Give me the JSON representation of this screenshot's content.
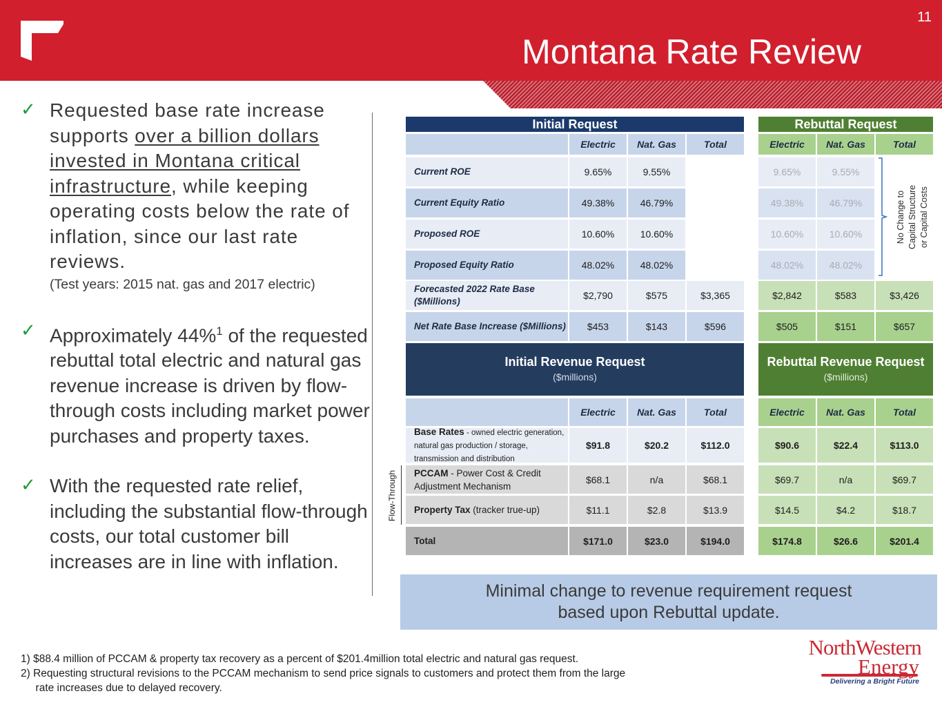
{
  "slide": {
    "page_number": "11",
    "title": "Montana Rate Review"
  },
  "bullets": [
    {
      "pre": "Requested base rate increase supports ",
      "underlined": "over a billion dollars invested in Montana critical infrastructure",
      "post": ", while keeping operating costs below the rate of inflation, since our last rate reviews.",
      "note": "(Test years: 2015 nat. gas and 2017 electric)"
    },
    {
      "pre": "Approximately 44%",
      "sup": "1",
      "post": " of the requested rebuttal total electric and natural gas revenue increase is driven by flow-through costs including market power purchases and property taxes."
    },
    {
      "text": "With the requested rate relief, including the substantial flow-through costs, our total customer bill increases are in line with inflation."
    }
  ],
  "table": {
    "initial_title": "Initial Request",
    "rebuttal_title": "Rebuttal Request",
    "col_headers": [
      "Electric",
      "Nat. Gas",
      "Total"
    ],
    "rows": [
      {
        "label": "Current ROE",
        "initial": [
          "9.65%",
          "9.55%",
          ""
        ],
        "rebuttal": [
          "9.65%",
          "9.55%",
          ""
        ]
      },
      {
        "label": "Current Equity Ratio",
        "initial": [
          "49.38%",
          "46.79%",
          ""
        ],
        "rebuttal": [
          "49.38%",
          "46.79%",
          ""
        ]
      },
      {
        "label": "Proposed ROE",
        "initial": [
          "10.60%",
          "10.60%",
          ""
        ],
        "rebuttal": [
          "10.60%",
          "10.60%",
          ""
        ]
      },
      {
        "label": "Proposed Equity Ratio",
        "initial": [
          "48.02%",
          "48.02%",
          ""
        ],
        "rebuttal": [
          "48.02%",
          "48.02%",
          ""
        ]
      },
      {
        "label": "Forecasted 2022 Rate Base ($Millions)",
        "initial": [
          "$2,790",
          "$575",
          "$3,365"
        ],
        "rebuttal": [
          "$2,842",
          "$583",
          "$3,426"
        ]
      },
      {
        "label": "Net Rate Base Increase ($Millions)",
        "initial": [
          "$453",
          "$143",
          "$596"
        ],
        "rebuttal": [
          "$505",
          "$151",
          "$657"
        ]
      }
    ],
    "no_change_note": [
      "No Change to",
      "Capital Structure",
      "or Capital Costs"
    ],
    "initial_revenue_title": "Initial Revenue Request",
    "rebuttal_revenue_title": "Rebuttal Revenue Request",
    "revenue_unit": "($millions)",
    "revenue_rows": [
      {
        "label_bold": "Base Rates",
        "label_rest": " - owned electric generation, natural gas production / storage, transmission and distribution",
        "initial": [
          "$91.8",
          "$20.2",
          "$112.0"
        ],
        "rebuttal": [
          "$90.6",
          "$22.4",
          "$113.0"
        ]
      },
      {
        "label_bold": "PCCAM",
        "label_rest": " - Power Cost & Credit Adjustment Mechanism",
        "initial": [
          "$68.1",
          "n/a",
          "$68.1"
        ],
        "rebuttal": [
          "$69.7",
          "n/a",
          "$69.7"
        ]
      },
      {
        "label_bold": "Property Tax",
        "label_rest": " (tracker true-up)",
        "initial": [
          "$11.1",
          "$2.8",
          "$13.9"
        ],
        "rebuttal": [
          "$14.5",
          "$4.2",
          "$18.7"
        ]
      },
      {
        "label_bold": "Total",
        "label_rest": "",
        "initial": [
          "$171.0",
          "$23.0",
          "$194.0"
        ],
        "rebuttal": [
          "$174.8",
          "$26.6",
          "$201.4"
        ]
      }
    ],
    "flow_through_label": "Flow-Through"
  },
  "callout": [
    "Minimal change to revenue requirement request",
    "based upon Rebuttal update."
  ],
  "footnotes": [
    "1)  $88.4 million of PCCAM & property tax recovery as a percent of $201.4million total electric and natural gas request.",
    "2)  Requesting structural revisions to the PCCAM mechanism to send price signals to customers and protect them from the large",
    "     rate increases due to delayed recovery."
  ],
  "logo": {
    "line1": "NorthWestern",
    "line2": "Energy",
    "tagline": "Delivering a Bright Future"
  },
  "colors": {
    "header_red": "#d21f2d",
    "initial_blue": "#1b3a6b",
    "rebuttal_green": "#4f7f33",
    "check_green": "#1f9a3c"
  }
}
